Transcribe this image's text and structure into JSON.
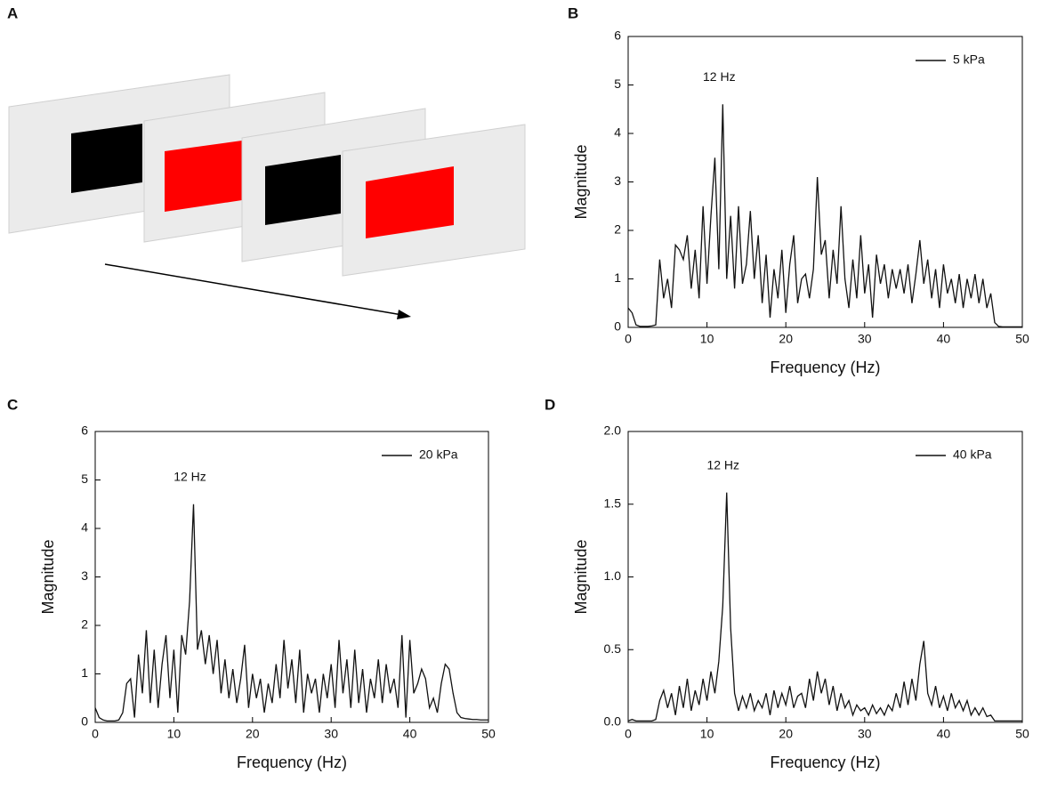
{
  "panel_labels": [
    "A",
    "B",
    "C",
    "D"
  ],
  "chart_data": [
    {
      "type": "line",
      "xlabel": "Frequency (Hz)",
      "ylabel": "Magnitude",
      "annotations": [
        "12 Hz"
      ],
      "legend": "upper right",
      "xlim": [
        0,
        50
      ],
      "ylim": [
        0,
        6
      ],
      "xticks": [
        0,
        10,
        20,
        30,
        40,
        50
      ],
      "yticks": [
        0,
        1,
        2,
        3,
        4,
        5,
        6
      ],
      "x": [
        0,
        0.5,
        1,
        1.5,
        2,
        2.5,
        3,
        3.5,
        4,
        4.5,
        5,
        5.5,
        6,
        6.5,
        7,
        7.5,
        8,
        8.5,
        9,
        9.5,
        10,
        10.5,
        11,
        11.5,
        12,
        12.5,
        13,
        13.5,
        14,
        14.5,
        15,
        15.5,
        16,
        16.5,
        17,
        17.5,
        18,
        18.5,
        19,
        19.5,
        20,
        20.5,
        21,
        21.5,
        22,
        22.5,
        23,
        23.5,
        24,
        24.5,
        25,
        25.5,
        26,
        26.5,
        27,
        27.5,
        28,
        28.5,
        29,
        29.5,
        30,
        30.5,
        31,
        31.5,
        32,
        32.5,
        33,
        33.5,
        34,
        34.5,
        35,
        35.5,
        36,
        36.5,
        37,
        37.5,
        38,
        38.5,
        39,
        39.5,
        40,
        40.5,
        41,
        41.5,
        42,
        42.5,
        43,
        43.5,
        44,
        44.5,
        45,
        45.5,
        46,
        46.5,
        47,
        47.5,
        48,
        48.5,
        49,
        49.5,
        50
      ],
      "series": [
        {
          "name": "5 kPa",
          "color": "#111111",
          "values": [
            0.4,
            0.3,
            0.05,
            0.02,
            0.02,
            0.02,
            0.03,
            0.05,
            1.4,
            0.6,
            1.0,
            0.4,
            1.7,
            1.6,
            1.4,
            1.9,
            0.8,
            1.6,
            0.6,
            2.5,
            0.9,
            2.3,
            3.5,
            1.2,
            4.6,
            1.0,
            2.3,
            0.8,
            2.5,
            0.9,
            1.3,
            2.4,
            1.0,
            1.9,
            0.5,
            1.5,
            0.2,
            1.2,
            0.6,
            1.6,
            0.3,
            1.3,
            1.9,
            0.5,
            1.0,
            1.1,
            0.6,
            1.2,
            3.1,
            1.5,
            1.8,
            0.6,
            1.6,
            0.9,
            2.5,
            1.0,
            0.4,
            1.4,
            0.6,
            1.9,
            0.7,
            1.3,
            0.2,
            1.5,
            0.9,
            1.3,
            0.6,
            1.2,
            0.8,
            1.2,
            0.7,
            1.3,
            0.5,
            1.1,
            1.8,
            0.9,
            1.4,
            0.6,
            1.2,
            0.4,
            1.3,
            0.7,
            1.0,
            0.5,
            1.1,
            0.4,
            1.0,
            0.6,
            1.1,
            0.5,
            1.0,
            0.4,
            0.7,
            0.1,
            0.02,
            0.01,
            0.01,
            0.01,
            0.01,
            0.01,
            0.01
          ]
        }
      ]
    },
    {
      "type": "line",
      "xlabel": "Frequency (Hz)",
      "ylabel": "Magnitude",
      "annotations": [
        "12 Hz"
      ],
      "legend": "upper right",
      "xlim": [
        0,
        50
      ],
      "ylim": [
        0,
        6
      ],
      "xticks": [
        0,
        10,
        20,
        30,
        40,
        50
      ],
      "yticks": [
        0,
        1,
        2,
        3,
        4,
        5,
        6
      ],
      "x": [
        0,
        0.5,
        1,
        1.5,
        2,
        2.5,
        3,
        3.5,
        4,
        4.5,
        5,
        5.5,
        6,
        6.5,
        7,
        7.5,
        8,
        8.5,
        9,
        9.5,
        10,
        10.5,
        11,
        11.5,
        12,
        12.5,
        13,
        13.5,
        14,
        14.5,
        15,
        15.5,
        16,
        16.5,
        17,
        17.5,
        18,
        18.5,
        19,
        19.5,
        20,
        20.5,
        21,
        21.5,
        22,
        22.5,
        23,
        23.5,
        24,
        24.5,
        25,
        25.5,
        26,
        26.5,
        27,
        27.5,
        28,
        28.5,
        29,
        29.5,
        30,
        30.5,
        31,
        31.5,
        32,
        32.5,
        33,
        33.5,
        34,
        34.5,
        35,
        35.5,
        36,
        36.5,
        37,
        37.5,
        38,
        38.5,
        39,
        39.5,
        40,
        40.5,
        41,
        41.5,
        42,
        42.5,
        43,
        43.5,
        44,
        44.5,
        45,
        45.5,
        46,
        46.5,
        47,
        47.5,
        48,
        48.5,
        49,
        49.5,
        50
      ],
      "series": [
        {
          "name": "20 kPa",
          "color": "#111111",
          "values": [
            0.3,
            0.1,
            0.05,
            0.03,
            0.03,
            0.03,
            0.05,
            0.2,
            0.8,
            0.9,
            0.1,
            1.4,
            0.6,
            1.9,
            0.4,
            1.5,
            0.3,
            1.2,
            1.8,
            0.5,
            1.5,
            0.2,
            1.8,
            1.4,
            2.5,
            4.5,
            1.5,
            1.9,
            1.2,
            1.8,
            1.0,
            1.7,
            0.6,
            1.3,
            0.5,
            1.1,
            0.4,
            0.9,
            1.6,
            0.3,
            1.0,
            0.5,
            0.9,
            0.2,
            0.8,
            0.4,
            1.2,
            0.5,
            1.7,
            0.7,
            1.3,
            0.4,
            1.5,
            0.2,
            1.0,
            0.6,
            0.9,
            0.2,
            1.0,
            0.5,
            1.2,
            0.3,
            1.7,
            0.6,
            1.3,
            0.3,
            1.5,
            0.4,
            1.1,
            0.2,
            0.9,
            0.5,
            1.3,
            0.4,
            1.2,
            0.6,
            0.9,
            0.3,
            1.8,
            0.1,
            1.7,
            0.6,
            0.8,
            1.1,
            0.9,
            0.3,
            0.5,
            0.2,
            0.8,
            1.2,
            1.1,
            0.6,
            0.2,
            0.1,
            0.08,
            0.07,
            0.06,
            0.06,
            0.05,
            0.05,
            0.05
          ]
        }
      ]
    },
    {
      "type": "line",
      "xlabel": "Frequency (Hz)",
      "ylabel": "Magnitude",
      "annotations": [
        "12 Hz"
      ],
      "legend": "upper right",
      "xlim": [
        0,
        50
      ],
      "ylim": [
        0,
        2
      ],
      "xticks": [
        0,
        10,
        20,
        30,
        40,
        50
      ],
      "yticks": [
        {
          "value": 0,
          "label": "0.0"
        },
        0.5,
        {
          "value": 1,
          "label": "1.0"
        },
        1.5,
        {
          "value": 2,
          "label": "2.0"
        }
      ],
      "x": [
        0,
        0.5,
        1,
        1.5,
        2,
        2.5,
        3,
        3.5,
        4,
        4.5,
        5,
        5.5,
        6,
        6.5,
        7,
        7.5,
        8,
        8.5,
        9,
        9.5,
        10,
        10.5,
        11,
        11.5,
        12,
        12.5,
        13,
        13.5,
        14,
        14.5,
        15,
        15.5,
        16,
        16.5,
        17,
        17.5,
        18,
        18.5,
        19,
        19.5,
        20,
        20.5,
        21,
        21.5,
        22,
        22.5,
        23,
        23.5,
        24,
        24.5,
        25,
        25.5,
        26,
        26.5,
        27,
        27.5,
        28,
        28.5,
        29,
        29.5,
        30,
        30.5,
        31,
        31.5,
        32,
        32.5,
        33,
        33.5,
        34,
        34.5,
        35,
        35.5,
        36,
        36.5,
        37,
        37.5,
        38,
        38.5,
        39,
        39.5,
        40,
        40.5,
        41,
        41.5,
        42,
        42.5,
        43,
        43.5,
        44,
        44.5,
        45,
        45.5,
        46,
        46.5,
        47,
        47.5,
        48,
        48.5,
        49,
        49.5,
        50
      ],
      "series": [
        {
          "name": "40 kPa",
          "color": "#111111",
          "values": [
            0.01,
            0.02,
            0.01,
            0.01,
            0.01,
            0.01,
            0.01,
            0.02,
            0.15,
            0.22,
            0.1,
            0.2,
            0.05,
            0.25,
            0.1,
            0.3,
            0.08,
            0.22,
            0.12,
            0.3,
            0.15,
            0.35,
            0.2,
            0.42,
            0.8,
            1.58,
            0.65,
            0.2,
            0.08,
            0.18,
            0.1,
            0.2,
            0.08,
            0.15,
            0.1,
            0.2,
            0.05,
            0.22,
            0.1,
            0.2,
            0.12,
            0.25,
            0.1,
            0.18,
            0.2,
            0.1,
            0.3,
            0.15,
            0.35,
            0.2,
            0.3,
            0.12,
            0.25,
            0.08,
            0.2,
            0.1,
            0.15,
            0.05,
            0.12,
            0.08,
            0.1,
            0.05,
            0.12,
            0.06,
            0.1,
            0.05,
            0.12,
            0.08,
            0.2,
            0.1,
            0.28,
            0.12,
            0.3,
            0.15,
            0.4,
            0.56,
            0.2,
            0.12,
            0.25,
            0.1,
            0.18,
            0.08,
            0.2,
            0.1,
            0.15,
            0.08,
            0.15,
            0.05,
            0.1,
            0.05,
            0.1,
            0.04,
            0.05,
            0.01,
            0.01,
            0.01,
            0.01,
            0.01,
            0.01,
            0.01,
            0.01
          ]
        }
      ]
    }
  ]
}
